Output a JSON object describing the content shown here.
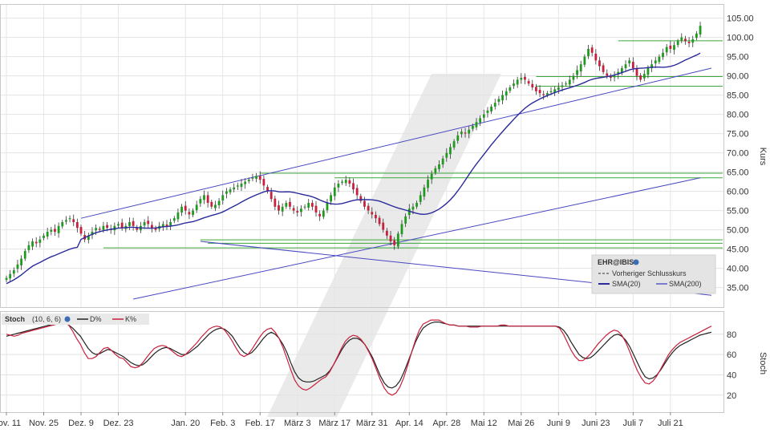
{
  "chart_data": [
    {
      "type": "line",
      "subtype": "candlestick",
      "ylabel": "Kurs",
      "ylim": [
        32,
        107
      ],
      "y_ticks": [
        "35.00",
        "40.00",
        "45.00",
        "50.00",
        "55.00",
        "60.00",
        "65.00",
        "70.00",
        "75.00",
        "80.00",
        "85.00",
        "90.00",
        "95.00",
        "100.00",
        "105.00"
      ],
      "y_tick_values": [
        35,
        40,
        45,
        50,
        55,
        60,
        65,
        70,
        75,
        80,
        85,
        90,
        95,
        100,
        105
      ],
      "x_ticks": [
        "Nov. 11",
        "Nov. 25",
        "Dez. 9",
        "Dez. 23",
        "Jan. 20",
        "Feb. 3",
        "Feb. 17",
        "März 3",
        "März 17",
        "März 31",
        "Apr. 14",
        "Apr. 28",
        "Mai 12",
        "Mai 26",
        "Juni 9",
        "Juni 23",
        "Juli 7",
        "Juli 21"
      ],
      "x_tick_index": [
        0,
        10,
        20,
        30,
        48,
        58,
        68,
        78,
        88,
        98,
        108,
        118,
        128,
        138,
        148,
        158,
        168,
        178
      ],
      "bars": 190,
      "close": [
        37.5,
        38.5,
        39.5,
        41,
        42.5,
        44.5,
        46,
        47,
        46.5,
        47.5,
        48.5,
        49.5,
        50,
        49.5,
        51,
        52,
        52.5,
        53,
        52,
        50.5,
        49,
        47.5,
        48.5,
        49.5,
        50.5,
        50,
        51,
        50.5,
        50,
        51,
        51.5,
        50.5,
        51,
        52,
        51,
        50,
        51,
        52,
        51.5,
        50.5,
        50,
        51,
        51.5,
        51,
        52,
        53,
        54.5,
        56,
        55,
        54,
        55,
        56.5,
        58,
        59,
        57,
        56,
        56.5,
        57.5,
        59,
        60,
        60.5,
        61,
        61.5,
        62,
        62.5,
        63,
        63.5,
        64,
        63,
        61.5,
        60,
        58,
        56,
        55,
        56,
        57,
        56,
        55,
        54.5,
        55.5,
        56,
        57,
        56,
        54.5,
        53.5,
        55,
        57,
        59,
        61,
        62,
        62.5,
        63,
        62,
        60.5,
        59,
        57.5,
        56,
        55,
        54,
        53,
        51.5,
        50,
        48.5,
        47,
        46,
        49,
        51.5,
        53.5,
        55.5,
        56,
        57,
        59,
        61,
        63,
        64.5,
        66,
        67,
        68.5,
        70,
        71.5,
        73,
        74.5,
        75.5,
        75,
        76,
        77,
        78,
        79,
        80,
        81,
        82,
        83,
        84,
        85,
        86,
        87,
        88,
        89,
        89.5,
        89,
        88,
        87,
        86,
        85.5,
        85,
        85.5,
        86,
        86.5,
        87,
        87.5,
        88,
        89,
        90,
        91.5,
        93,
        95,
        97,
        96,
        94,
        92.5,
        91,
        90,
        89.5,
        90,
        91,
        92,
        93,
        94,
        92,
        90,
        89,
        90.5,
        92,
        93,
        94,
        95,
        96,
        97.5,
        97,
        98,
        99,
        100,
        99,
        98.5,
        99.5,
        101,
        103
      ],
      "series": [
        {
          "name": "SMA(20)",
          "color": "#2a2a9a"
        },
        {
          "name": "SMA(200)",
          "color": "#5a5ac8"
        }
      ],
      "horizontal_levels": [
        45.3,
        46.5,
        47.4,
        63.5,
        64.7,
        87.3,
        89.8,
        99.1
      ],
      "trendlines": [
        {
          "from": [
            20,
            53
          ],
          "to": [
            189,
            92
          ]
        },
        {
          "from": [
            52,
            47
          ],
          "to": [
            189,
            33
          ]
        },
        {
          "from": [
            34,
            32
          ],
          "to": [
            186,
            63.5
          ]
        }
      ],
      "legend": {
        "title": "EHR@IBIS",
        "items": [
          "Vorheriger Schlusskurs",
          "SMA(20)",
          "SMA(200)"
        ],
        "placement": "bottom-right"
      },
      "grid": true
    },
    {
      "type": "line",
      "title": "Stoch",
      "params": "(10, 6, 6)",
      "ylabel": "Stoch",
      "ylim": [
        8,
        98
      ],
      "y_ticks": [
        "20",
        "40",
        "60",
        "80"
      ],
      "y_tick_values": [
        20,
        40,
        60,
        80
      ],
      "series": [
        {
          "name": "D%",
          "color": "#222222",
          "values": [
            78,
            79,
            80,
            81,
            82,
            83,
            84,
            85,
            86,
            87,
            88,
            89,
            90,
            91,
            92,
            91,
            89,
            86,
            82,
            78,
            72,
            66,
            62,
            60,
            61,
            63,
            65,
            64,
            62,
            60,
            58,
            55,
            52,
            50,
            49,
            50,
            53,
            57,
            61,
            64,
            66,
            67,
            66,
            64,
            62,
            60,
            60,
            62,
            65,
            68,
            72,
            76,
            80,
            83,
            85,
            86,
            85,
            82,
            78,
            72,
            66,
            62,
            60,
            62,
            66,
            71,
            76,
            80,
            82,
            80,
            76,
            70,
            62,
            52,
            43,
            37,
            34,
            33,
            33,
            34,
            36,
            38,
            40,
            44,
            50,
            57,
            64,
            70,
            74,
            76,
            76,
            74,
            70,
            64,
            57,
            48,
            39,
            32,
            28,
            27,
            29,
            34,
            42,
            52,
            62,
            72,
            80,
            86,
            89,
            91,
            92,
            92,
            91,
            90,
            89,
            89,
            88,
            88,
            88,
            88,
            88,
            88,
            88,
            88,
            88,
            88,
            88,
            88,
            88,
            88,
            88,
            88,
            88,
            88,
            88,
            88,
            88,
            88,
            88,
            88,
            88,
            88,
            87,
            84,
            79,
            72,
            66,
            60,
            57,
            56,
            57,
            60,
            64,
            68,
            72,
            76,
            79,
            80,
            78,
            74,
            68,
            60,
            52,
            44,
            38,
            36,
            37,
            40,
            45,
            51,
            57,
            62,
            66,
            69,
            71,
            73,
            75,
            77,
            79,
            80,
            81,
            82
          ]
        },
        {
          "name": "K%",
          "color": "#c8203c",
          "values": [
            80,
            79,
            78,
            79,
            81,
            82,
            83,
            84,
            85,
            86,
            87,
            88,
            89,
            90,
            91,
            92,
            89,
            83,
            76,
            70,
            62,
            56,
            56,
            58,
            62,
            66,
            67,
            64,
            60,
            57,
            56,
            52,
            48,
            47,
            48,
            52,
            57,
            62,
            66,
            68,
            69,
            68,
            65,
            62,
            59,
            58,
            60,
            64,
            68,
            72,
            77,
            81,
            85,
            87,
            88,
            87,
            84,
            79,
            73,
            66,
            60,
            58,
            60,
            65,
            71,
            77,
            82,
            85,
            86,
            82,
            76,
            67,
            56,
            45,
            35,
            29,
            26,
            25,
            27,
            30,
            33,
            36,
            38,
            43,
            50,
            58,
            66,
            73,
            77,
            79,
            78,
            75,
            70,
            63,
            55,
            45,
            35,
            27,
            22,
            20,
            22,
            28,
            37,
            49,
            62,
            74,
            84,
            90,
            92,
            94,
            94,
            94,
            92,
            90,
            89,
            89,
            88,
            88,
            88,
            87,
            87,
            87,
            88,
            88,
            88,
            88,
            88,
            89,
            89,
            88,
            88,
            88,
            88,
            88,
            88,
            88,
            88,
            88,
            88,
            88,
            88,
            88,
            86,
            80,
            72,
            64,
            58,
            54,
            54,
            57,
            61,
            66,
            71,
            75,
            79,
            82,
            84,
            83,
            79,
            72,
            63,
            53,
            44,
            37,
            32,
            31,
            34,
            39,
            46,
            53,
            60,
            65,
            69,
            72,
            74,
            76,
            78,
            80,
            82,
            84,
            86,
            88
          ]
        }
      ],
      "grid": true
    }
  ]
}
